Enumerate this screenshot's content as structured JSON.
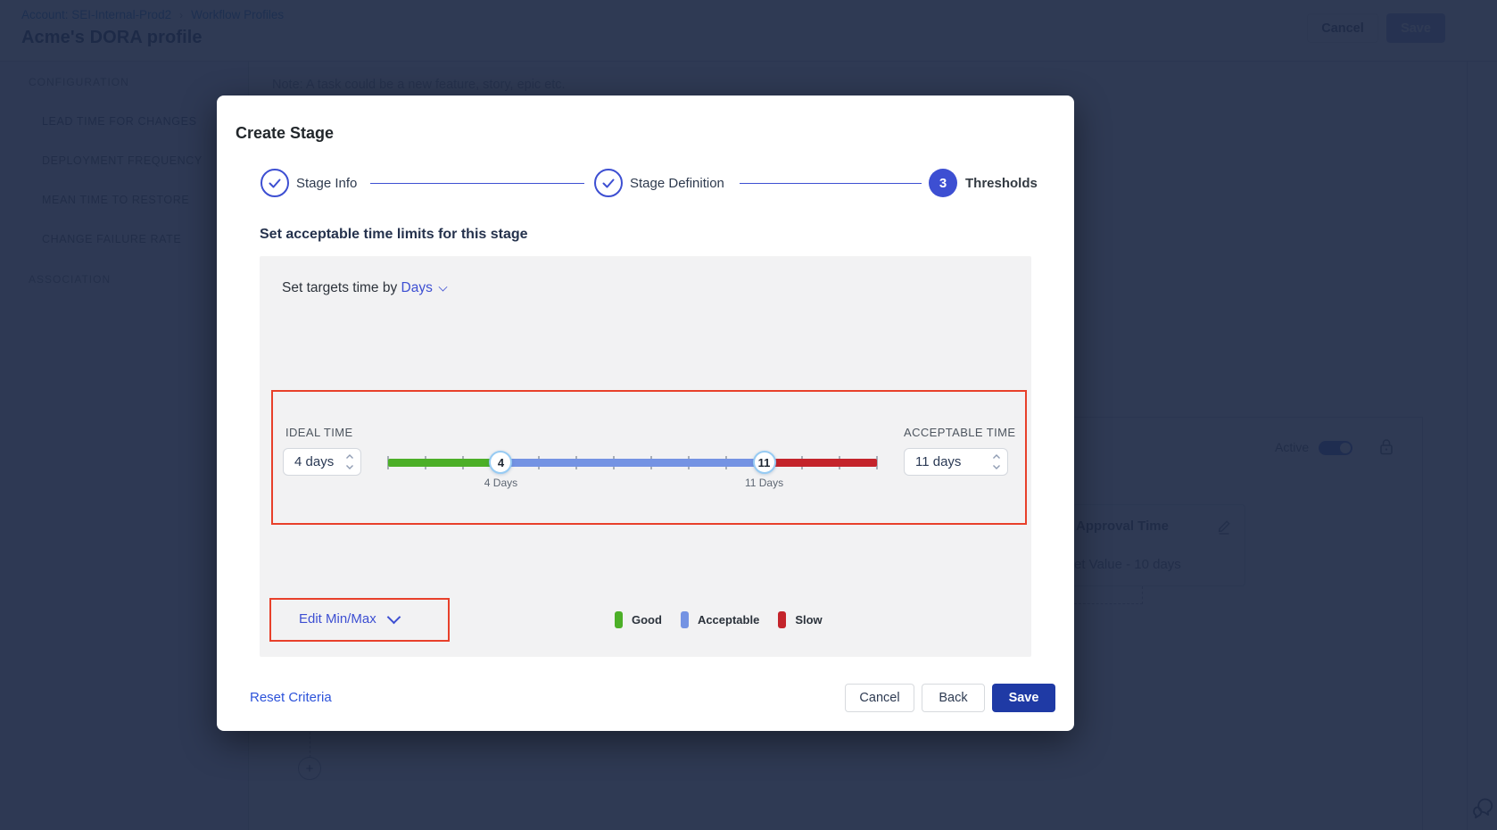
{
  "app": {
    "breadcrumb": {
      "account": "Account: SEI-Internal-Prod2",
      "separator": "›",
      "page": "Workflow Profiles"
    },
    "title": "Acme's DORA profile",
    "actions": {
      "cancel": "Cancel",
      "save": "Save"
    },
    "sidebar": {
      "section_configuration": "CONFIGURATION",
      "items": [
        {
          "label": "LEAD TIME FOR CHANGES",
          "selected": true
        },
        {
          "label": "DEPLOYMENT FREQUENCY",
          "selected": false
        },
        {
          "label": "MEAN TIME TO RESTORE",
          "selected": false
        },
        {
          "label": "CHANGE FAILURE RATE",
          "selected": false
        }
      ],
      "section_association": "ASSOCIATION"
    },
    "content": {
      "note": "Note: A task could be a new feature, story, epic etc.",
      "active_label": "Active",
      "stage_card": {
        "title": "Approval Time",
        "value": "et Value - 10 days"
      },
      "add_stage_label": "+"
    }
  },
  "modal": {
    "title": "Create Stage",
    "steps": [
      {
        "label": "Stage Info",
        "state": "done"
      },
      {
        "label": "Stage Definition",
        "state": "done"
      },
      {
        "label": "Thresholds",
        "number": "3",
        "state": "active"
      }
    ],
    "heading": "Set acceptable time limits for this stage",
    "target_by": {
      "prefix": "Set targets time by",
      "unit": "Days"
    },
    "ideal": {
      "label": "IDEAL TIME",
      "value": "4 days"
    },
    "acceptable": {
      "label": "ACCEPTABLE TIME",
      "value": "11 days"
    },
    "slider": {
      "min_day": 1,
      "max_day": 14,
      "ideal_day": 4,
      "acceptable_day": 11,
      "ideal_marker": "4",
      "acceptable_marker": "11",
      "ideal_tick_label": "4 Days",
      "acceptable_tick_label": "11 Days",
      "colors": {
        "good": "#4caf27",
        "acceptable": "#7493e3",
        "slow": "#c4242b"
      }
    },
    "edit_minmax_label": "Edit Min/Max",
    "legend": [
      {
        "label": "Good",
        "color": "#4caf27"
      },
      {
        "label": "Acceptable",
        "color": "#7493e3"
      },
      {
        "label": "Slow",
        "color": "#c4242b"
      }
    ],
    "footer": {
      "reset": "Reset Criteria",
      "cancel": "Cancel",
      "back": "Back",
      "save": "Save"
    }
  },
  "colors": {
    "accent_blue": "#3d4fd2",
    "annotation_red": "#e8402a",
    "save_blue": "#1f3aa5"
  }
}
